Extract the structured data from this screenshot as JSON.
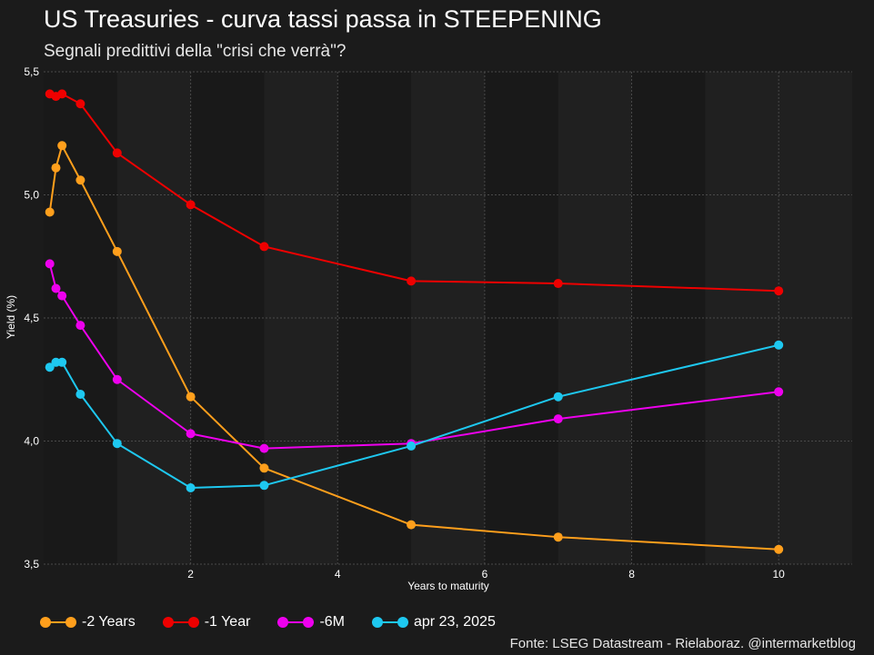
{
  "header": {
    "title": "US Treasuries - curva tassi passa in STEEPENING",
    "subtitle": "Segnali predittivi della \"crisi che verrà\"?"
  },
  "source": "Fonte: LSEG Datastream  -  Rielaboraz. @intermarketblog",
  "chart_data": {
    "type": "line",
    "title": "US Treasuries - curva tassi passa in STEEPENING",
    "subtitle": "Segnali predittivi della \"crisi che verrà\"?",
    "xlabel": "Years to maturity",
    "ylabel": "Yield (%)",
    "xlim": [
      0,
      11
    ],
    "ylim": [
      3.5,
      5.5
    ],
    "x_ticks": [
      2,
      4,
      6,
      8,
      10
    ],
    "y_ticks": [
      3.5,
      4.0,
      4.5,
      5.0,
      5.5
    ],
    "x_tick_labels": [
      "2",
      "4",
      "6",
      "8",
      "10"
    ],
    "y_tick_labels": [
      "3,5",
      "4,0",
      "4,5",
      "5,0",
      "5,5"
    ],
    "grid": true,
    "legend_position": "bottom",
    "x": [
      0.083,
      0.167,
      0.25,
      0.5,
      1,
      2,
      3,
      5,
      7,
      10
    ],
    "series": [
      {
        "name": "-2 Years",
        "color": "#ff9f1c",
        "values": [
          4.93,
          5.11,
          5.2,
          5.06,
          4.77,
          4.18,
          3.89,
          3.66,
          3.61,
          3.56
        ]
      },
      {
        "name": "-1 Year",
        "color": "#ee0000",
        "values": [
          5.41,
          5.4,
          5.41,
          5.37,
          5.17,
          4.96,
          4.79,
          4.65,
          4.64,
          4.61
        ]
      },
      {
        "name": "-6M",
        "color": "#ee00ee",
        "values": [
          4.72,
          4.62,
          4.59,
          4.47,
          4.25,
          4.03,
          3.97,
          3.99,
          4.09,
          4.2
        ]
      },
      {
        "name": "apr 23, 2025",
        "color": "#1ec8f0",
        "values": [
          4.3,
          4.32,
          4.32,
          4.19,
          3.99,
          3.81,
          3.82,
          3.98,
          4.18,
          4.39
        ]
      }
    ]
  }
}
